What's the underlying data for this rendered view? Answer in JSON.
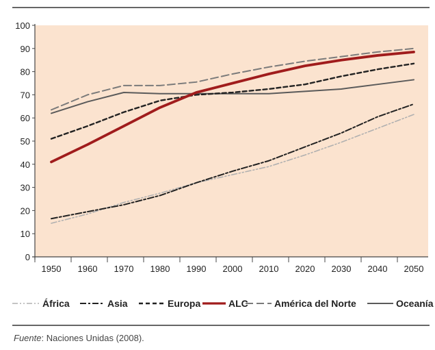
{
  "chart_data": {
    "type": "line",
    "title": "",
    "xlabel": "",
    "ylabel": "",
    "x": [
      1950,
      1960,
      1970,
      1980,
      1990,
      2000,
      2010,
      2020,
      2030,
      2040,
      2050
    ],
    "x_tick_labels": [
      "1950",
      "1960",
      "1970",
      "1980",
      "1990",
      "2000",
      "2010",
      "2020",
      "2030",
      "2040",
      "2050"
    ],
    "ylim": [
      0,
      100
    ],
    "y_ticks": [
      0,
      10,
      20,
      30,
      40,
      50,
      60,
      70,
      80,
      90,
      100
    ],
    "y_tick_labels": [
      "0",
      "10",
      "20",
      "30",
      "40",
      "50",
      "60",
      "70",
      "80",
      "90",
      "100"
    ],
    "grid": false,
    "background_color": "#fbe3cf",
    "legend_position": "bottom",
    "series": [
      {
        "name": "África",
        "color": "#b0b0b0",
        "style": "dash-dot-dot",
        "values": [
          14.5,
          18.5,
          23.5,
          27.5,
          32,
          35.5,
          39,
          44,
          49.5,
          55.5,
          61.5
        ]
      },
      {
        "name": "Asia",
        "color": "#222222",
        "style": "dash-dot",
        "values": [
          16.5,
          19.5,
          22.5,
          26.5,
          32,
          37,
          41.5,
          47.5,
          53.5,
          60.5,
          66
        ]
      },
      {
        "name": "Europa",
        "color": "#222222",
        "style": "dashed",
        "values": [
          51,
          56.5,
          62.5,
          67.5,
          70,
          71,
          72.5,
          74.5,
          78,
          81,
          83.5
        ]
      },
      {
        "name": "ALC",
        "color": "#a01c1c",
        "style": "solid-thick",
        "values": [
          41,
          48.5,
          56.5,
          64.5,
          71,
          75,
          79,
          82.5,
          85,
          87,
          88.5
        ]
      },
      {
        "name": "América del Norte",
        "color": "#7a7a7a",
        "style": "long-dash",
        "values": [
          63.5,
          70,
          74,
          74,
          75.5,
          79,
          82,
          84.5,
          86.5,
          88.5,
          90
        ]
      },
      {
        "name": "Oceanía",
        "color": "#5a5a5a",
        "style": "solid",
        "values": [
          62,
          67,
          71,
          70.5,
          70.5,
          70.5,
          70.5,
          71.5,
          72.5,
          74.5,
          76.5
        ]
      }
    ]
  },
  "source_note": {
    "prefix": "Fuente",
    "text": ": Naciones Unidas (2008)."
  }
}
